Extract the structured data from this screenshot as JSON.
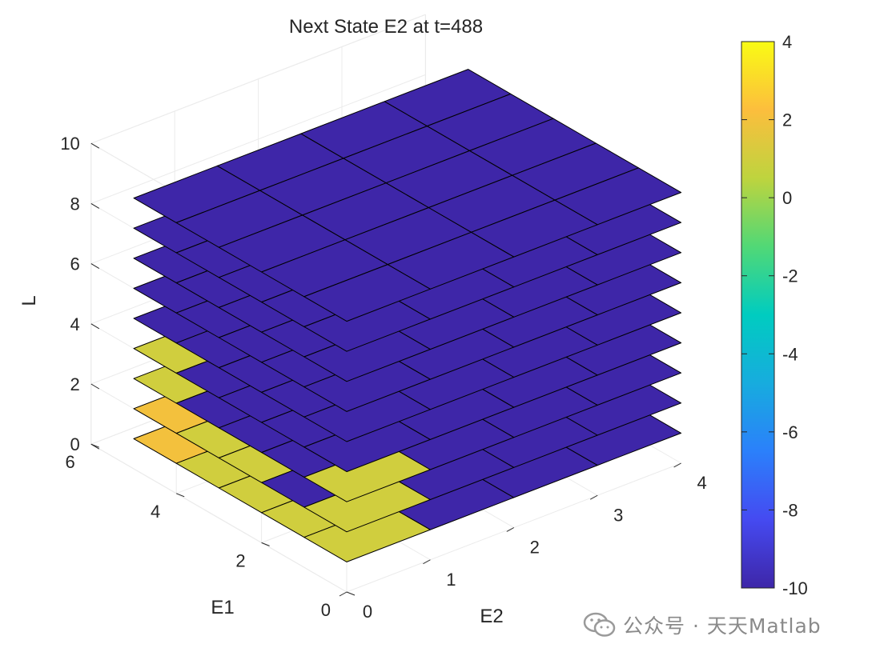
{
  "chart_data": {
    "type": "surface3d",
    "title": "Next State E2 at t=488",
    "xlabel": "E2",
    "ylabel": "E1",
    "zlabel": "L",
    "x_ticks": [
      "0",
      "1",
      "2",
      "3",
      "4"
    ],
    "y_ticks": [
      "0",
      "2",
      "4",
      "6"
    ],
    "z_ticks": [
      "0",
      "2",
      "4",
      "6",
      "8",
      "10"
    ],
    "zlim": [
      0,
      10
    ],
    "clim": [
      -10,
      4
    ],
    "colorbar_ticks": [
      "4",
      "2",
      "0",
      "-2",
      "-4",
      "-6",
      "-8",
      "-10"
    ],
    "grid": true,
    "layers_L": [
      1,
      2,
      3,
      4,
      5,
      6,
      7,
      8,
      9
    ],
    "E1_edges": [
      0,
      1,
      2,
      3,
      4,
      5
    ],
    "E2_edges": [
      0,
      1,
      2,
      3,
      4
    ],
    "values_by_layer": [
      [
        [
          1,
          -10,
          -10,
          -10
        ],
        [
          1,
          2,
          1,
          3
        ],
        [
          1,
          -10,
          2,
          2
        ],
        [
          1,
          -10,
          -10,
          -10
        ],
        [
          2,
          -10,
          -10,
          -10
        ]
      ],
      [
        [
          1,
          -10,
          -10,
          -10
        ],
        [
          -10,
          -10,
          -10,
          -10
        ],
        [
          1,
          -10,
          -10,
          2
        ],
        [
          1,
          -10,
          -10,
          -10
        ],
        [
          2,
          -10,
          -10,
          -10
        ]
      ],
      [
        [
          1,
          -10,
          -10,
          -10
        ],
        [
          -10,
          -10,
          -10,
          -10
        ],
        [
          -10,
          -10,
          -10,
          1
        ],
        [
          -10,
          -10,
          -10,
          2
        ],
        [
          1,
          -10,
          -10,
          2
        ]
      ],
      [
        [
          -10,
          -10,
          -10,
          -10
        ],
        [
          -10,
          -10,
          -10,
          -10
        ],
        [
          -10,
          -10,
          -10,
          -10
        ],
        [
          -10,
          -10,
          -10,
          -10
        ],
        [
          1,
          -10,
          -10,
          -10
        ]
      ],
      [
        [
          -10,
          -10,
          -10,
          -10
        ],
        [
          -10,
          -10,
          -10,
          -10
        ],
        [
          -10,
          -10,
          -10,
          -10
        ],
        [
          -10,
          -10,
          -10,
          -10
        ],
        [
          -10,
          -10,
          -10,
          -10
        ]
      ],
      [
        [
          -10,
          -10,
          -10,
          -10
        ],
        [
          -10,
          -10,
          -10,
          -10
        ],
        [
          -10,
          -10,
          -10,
          -10
        ],
        [
          -10,
          -10,
          -10,
          -10
        ],
        [
          -10,
          -10,
          -10,
          -10
        ]
      ],
      [
        [
          -10,
          -10,
          -10,
          -10
        ],
        [
          -10,
          -10,
          -10,
          -10
        ],
        [
          -10,
          -10,
          -10,
          -10
        ],
        [
          -10,
          -10,
          -10,
          -10
        ],
        [
          -10,
          -10,
          -10,
          -10
        ]
      ],
      [
        [
          -10,
          -10,
          -10,
          -10
        ],
        [
          -10,
          -10,
          -10,
          -10
        ],
        [
          -10,
          -10,
          -10,
          -10
        ],
        [
          -10,
          -10,
          -10,
          -10
        ],
        [
          -10,
          -10,
          -10,
          -10
        ]
      ],
      [
        [
          -10,
          -10,
          -10,
          -10
        ],
        [
          -10,
          -10,
          -10,
          -10
        ],
        [
          -10,
          -10,
          -10,
          -10
        ],
        [
          -10,
          -10,
          -10,
          -10
        ],
        [
          -10,
          -10,
          -10,
          -10
        ]
      ]
    ],
    "colormap": "parula"
  },
  "watermark": {
    "text": "公众号 · 天天Matlab",
    "icon": "wechat-icon"
  }
}
